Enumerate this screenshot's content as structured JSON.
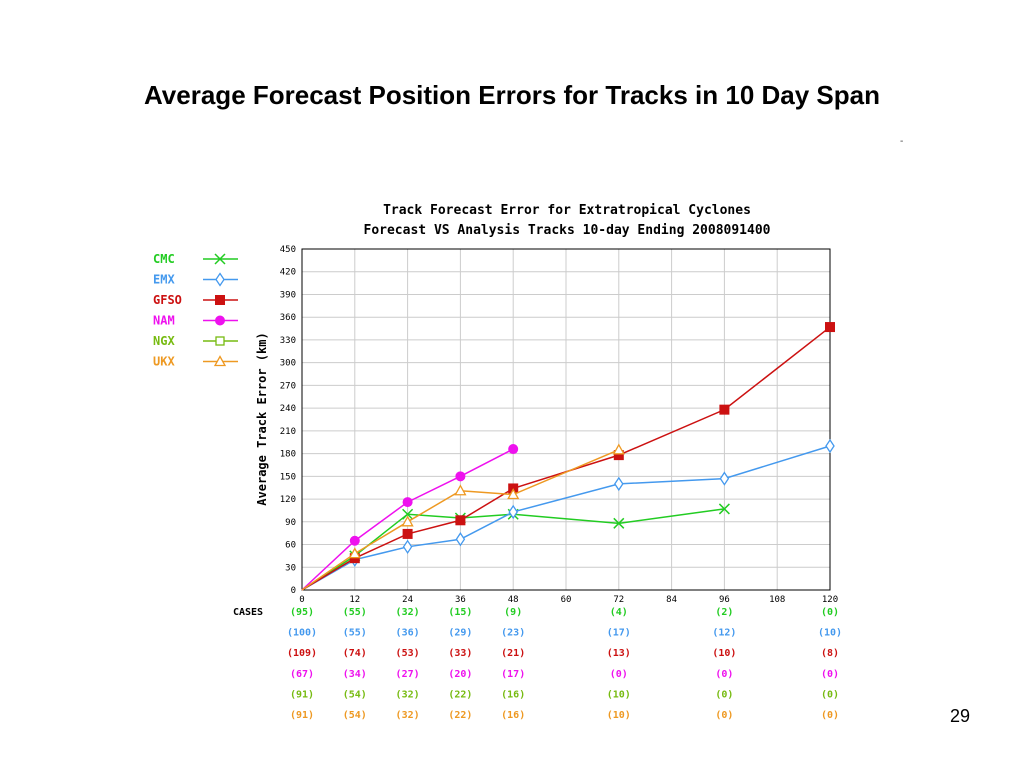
{
  "slide": {
    "title": "Average Forecast Position Errors for Tracks in 10 Day Span",
    "corner_mark": "-",
    "page_number": "29"
  },
  "chart_data": {
    "type": "line",
    "title": "Track Forecast Error for Extratropical Cyclones",
    "subtitle": "Forecast VS Analysis Tracks 10-day Ending 2008091400",
    "xlabel": "",
    "ylabel": "Average Track Error (km)",
    "xlim": [
      0,
      120
    ],
    "ylim": [
      0,
      450
    ],
    "x_ticks": [
      "0",
      "12",
      "24",
      "36",
      "48",
      "60",
      "72",
      "84",
      "96",
      "108",
      "120"
    ],
    "y_ticks": [
      "0",
      "30",
      "60",
      "90",
      "120",
      "150",
      "180",
      "210",
      "240",
      "270",
      "300",
      "330",
      "360",
      "390",
      "420",
      "450"
    ],
    "grid": true,
    "legend_position": "left",
    "cases_label": "CASES",
    "series": [
      {
        "name": "CMC",
        "color": "#22cc22",
        "marker": "x",
        "x": [
          0,
          12,
          24,
          36,
          48,
          72,
          96
        ],
        "values": [
          0,
          45,
          100,
          95,
          100,
          88,
          107
        ],
        "cases": [
          "(95)",
          "(55)",
          "(32)",
          "(15)",
          "(9)",
          "(4)",
          "(2)",
          "(0)"
        ]
      },
      {
        "name": "EMX",
        "color": "#4499ee",
        "marker": "diamond",
        "x": [
          0,
          12,
          24,
          36,
          48,
          72,
          96,
          120
        ],
        "values": [
          0,
          40,
          57,
          67,
          103,
          140,
          147,
          190
        ],
        "cases": [
          "(100)",
          "(55)",
          "(36)",
          "(29)",
          "(23)",
          "(17)",
          "(12)",
          "(10)"
        ]
      },
      {
        "name": "GFSO",
        "color": "#cc1111",
        "marker": "square-filled",
        "x": [
          0,
          12,
          24,
          36,
          48,
          72,
          96,
          120
        ],
        "values": [
          0,
          42,
          74,
          92,
          134,
          178,
          238,
          347
        ],
        "cases": [
          "(109)",
          "(74)",
          "(53)",
          "(33)",
          "(21)",
          "(13)",
          "(10)",
          "(8)"
        ]
      },
      {
        "name": "NAM",
        "color": "#ee11ee",
        "marker": "circle-filled",
        "x": [
          0,
          12,
          24,
          36,
          48
        ],
        "values": [
          0,
          65,
          116,
          150,
          186
        ],
        "cases": [
          "(67)",
          "(34)",
          "(27)",
          "(20)",
          "(17)",
          "(0)",
          "(0)",
          "(0)"
        ]
      },
      {
        "name": "NGX",
        "color": "#77bb11",
        "marker": "square-open",
        "x": [
          0
        ],
        "values": [
          0
        ],
        "cases": [
          "(91)",
          "(54)",
          "(32)",
          "(22)",
          "(16)",
          "(10)",
          "(0)",
          "(0)"
        ]
      },
      {
        "name": "UKX",
        "color": "#ee9922",
        "marker": "triangle-open",
        "x": [
          0,
          12,
          24,
          36,
          48,
          72
        ],
        "values": [
          0,
          48,
          90,
          131,
          126,
          185
        ],
        "cases": [
          "(91)",
          "(54)",
          "(32)",
          "(22)",
          "(16)",
          "(10)",
          "(0)",
          "(0)"
        ]
      }
    ],
    "cases_x": [
      0,
      12,
      24,
      36,
      48,
      72,
      96,
      120
    ]
  }
}
